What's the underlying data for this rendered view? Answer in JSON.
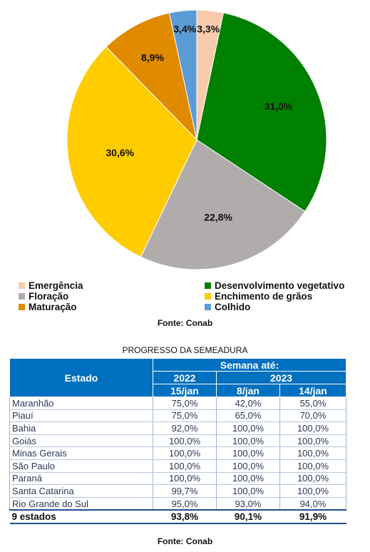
{
  "chart_data": {
    "type": "pie",
    "slices": [
      {
        "name": "Emergência",
        "value": 3.3,
        "label": "3,3%",
        "color": "#f8cbad"
      },
      {
        "name": "Desenvolvimento vegetativo",
        "value": 31.0,
        "label": "31,0%",
        "color": "#008000"
      },
      {
        "name": "Floração",
        "value": 22.8,
        "label": "22,8%",
        "color": "#b0acac"
      },
      {
        "name": "Enchimento de grãos",
        "value": 30.6,
        "label": "30,6%",
        "color": "#ffcc00"
      },
      {
        "name": "Maturação",
        "value": 8.9,
        "label": "8,9%",
        "color": "#e08a00"
      },
      {
        "name": "Colhido",
        "value": 3.4,
        "label": "3,4%",
        "color": "#5b9bd5"
      }
    ],
    "legend_position": "bottom"
  },
  "source_top": "Fonte: Conab",
  "table": {
    "title": "PROGRESSO DA SEMEADURA",
    "header_estado": "Estado",
    "header_semana": "Semana até:",
    "year_2022": "2022",
    "year_2023": "2023",
    "col_1": "15/jan",
    "col_2": "8/jan",
    "col_3": "14/jan",
    "rows": [
      {
        "estado": "Maranhão",
        "v1": "75,0%",
        "v2": "42,0%",
        "v3": "55,0%"
      },
      {
        "estado": "Piauí",
        "v1": "75,0%",
        "v2": "65,0%",
        "v3": "70,0%"
      },
      {
        "estado": "Bahia",
        "v1": "92,0%",
        "v2": "100,0%",
        "v3": "100,0%"
      },
      {
        "estado": "Goiás",
        "v1": "100,0%",
        "v2": "100,0%",
        "v3": "100,0%"
      },
      {
        "estado": "Minas Gerais",
        "v1": "100,0%",
        "v2": "100,0%",
        "v3": "100,0%"
      },
      {
        "estado": "São Paulo",
        "v1": "100,0%",
        "v2": "100,0%",
        "v3": "100,0%"
      },
      {
        "estado": "Paraná",
        "v1": "100,0%",
        "v2": "100,0%",
        "v3": "100,0%"
      },
      {
        "estado": "Santa Catarina",
        "v1": "99,7%",
        "v2": "100,0%",
        "v3": "100,0%"
      },
      {
        "estado": "Rio Grande do Sul",
        "v1": "95,0%",
        "v2": "93,0%",
        "v3": "94,0%"
      }
    ],
    "total": {
      "estado": "9 estados",
      "v1": "93,8%",
      "v2": "90,1%",
      "v3": "91,9%"
    }
  },
  "source_bottom": "Fonte: Conab"
}
